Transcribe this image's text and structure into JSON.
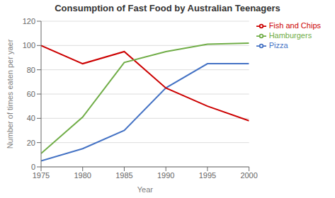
{
  "chart_data": {
    "type": "line",
    "title": "Consumption of Fast Food by Australian Teenagers",
    "xlabel": "Year",
    "ylabel": "Number of times eaten per yaer",
    "x": [
      1975,
      1980,
      1985,
      1990,
      1995,
      2000
    ],
    "series": [
      {
        "name": "Pizza",
        "color": "#4472C4",
        "values": [
          5,
          15,
          30,
          65,
          85,
          85
        ]
      },
      {
        "name": "Fish and Chips",
        "color": "#CC0000",
        "values": [
          100,
          85,
          95,
          65,
          50,
          38
        ]
      },
      {
        "name": "Hamburgers",
        "color": "#70AD47",
        "values": [
          11,
          41,
          86,
          95,
          101,
          102
        ]
      }
    ],
    "xlim": [
      1975,
      2000
    ],
    "xticks": [
      1975,
      1980,
      1985,
      1990,
      1995,
      2000
    ],
    "ylim": [
      0,
      120
    ],
    "yticks": [
      0,
      20,
      40,
      60,
      80,
      100,
      120
    ],
    "grid": "y",
    "legend": "right"
  }
}
